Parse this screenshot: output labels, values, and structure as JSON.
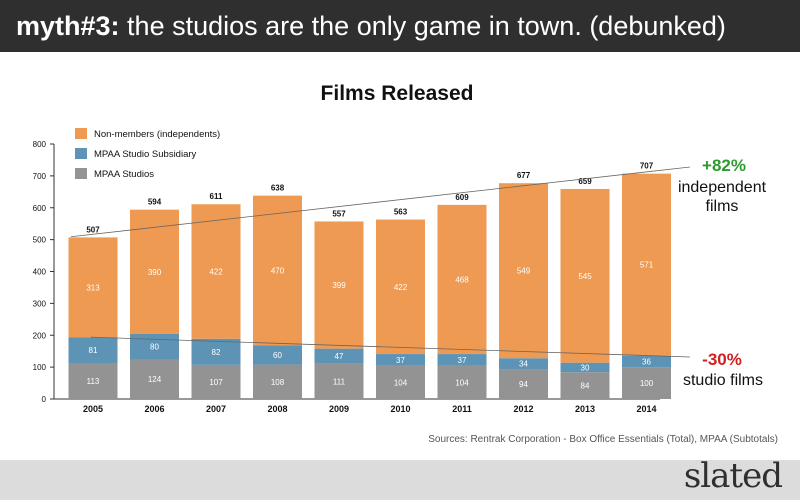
{
  "header": {
    "prefix": "myth#3:",
    "text": "the studios are the only game in town. (debunked)"
  },
  "chart_data": {
    "type": "bar",
    "stacked": true,
    "title": "Films Released",
    "categories": [
      "2005",
      "2006",
      "2007",
      "2008",
      "2009",
      "2010",
      "2011",
      "2012",
      "2013",
      "2014"
    ],
    "series": [
      {
        "name": "MPAA Studios",
        "color": "#939393",
        "values": [
          113,
          124,
          107,
          108,
          111,
          104,
          104,
          94,
          84,
          100
        ]
      },
      {
        "name": "MPAA Studio Subsidiary",
        "color": "#5d93b4",
        "values": [
          81,
          80,
          82,
          60,
          47,
          37,
          37,
          34,
          30,
          36
        ]
      },
      {
        "name": "Non-members (independents)",
        "color": "#ee9a52",
        "values": [
          313,
          390,
          422,
          470,
          399,
          422,
          468,
          549,
          545,
          571
        ]
      }
    ],
    "totals": [
      507,
      594,
      611,
      638,
      557,
      563,
      609,
      677,
      659,
      707
    ],
    "ylim": [
      0,
      800
    ],
    "yticks": [
      0,
      100,
      200,
      300,
      400,
      500,
      600,
      700,
      800
    ],
    "legend_order": [
      "Non-members (independents)",
      "MPAA Studio Subsidiary",
      "MPAA Studios"
    ],
    "legend_position": "top-left",
    "annotations": [
      {
        "pct": "+82%",
        "label1": "independent",
        "label2": "films",
        "color": "#2e9a2e"
      },
      {
        "pct": "-30%",
        "label1": "studio films",
        "color": "#d02020"
      }
    ]
  },
  "source": "Sources: Rentrak Corporation - Box Office Essentials (Total), MPAA (Subtotals)",
  "logo": "slated"
}
